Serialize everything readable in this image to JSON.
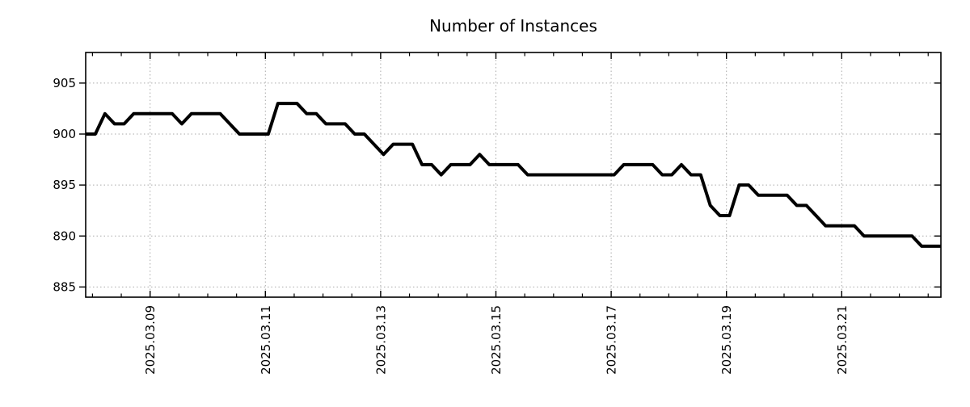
{
  "chart_data": {
    "type": "line",
    "title": "Number of Instances",
    "series_name": "instances",
    "line_color": "#000000",
    "grid_color": "#aaaaaa",
    "background": "#ffffff",
    "grid": "dotted",
    "legend": "none",
    "xlabel": "",
    "ylabel": "",
    "ylim": [
      884,
      908
    ],
    "y_ticks": [
      905,
      900,
      895,
      890,
      885
    ],
    "x_ticks": [
      {
        "label": "2025.03.09",
        "day_offset": 2
      },
      {
        "label": "2025.03.11",
        "day_offset": 4
      },
      {
        "label": "2025.03.13",
        "day_offset": 6
      },
      {
        "label": "2025.03.15",
        "day_offset": 8
      },
      {
        "label": "2025.03.17",
        "day_offset": 10
      },
      {
        "label": "2025.03.19",
        "day_offset": 12
      },
      {
        "label": "2025.03.21",
        "day_offset": 14
      }
    ],
    "x_minor_tick_days": 0.5,
    "x_range_days": [
      0.88,
      15.72
    ],
    "start_time": "2025-03-07 21:00",
    "interval_hours": 4,
    "values": [
      900,
      900,
      902,
      901,
      901,
      902,
      902,
      902,
      902,
      902,
      901,
      902,
      902,
      902,
      902,
      901,
      900,
      900,
      900,
      900,
      903,
      903,
      903,
      902,
      902,
      901,
      901,
      901,
      900,
      900,
      899,
      898,
      899,
      899,
      899,
      897,
      897,
      896,
      897,
      897,
      897,
      898,
      897,
      897,
      897,
      897,
      896,
      896,
      896,
      896,
      896,
      896,
      896,
      896,
      896,
      896,
      897,
      897,
      897,
      897,
      896,
      896,
      897,
      896,
      896,
      893,
      892,
      892,
      895,
      895,
      894,
      894,
      894,
      894,
      893,
      893,
      892,
      891,
      891,
      891,
      891,
      890,
      890,
      890,
      890,
      890,
      890,
      889,
      889,
      889
    ]
  }
}
